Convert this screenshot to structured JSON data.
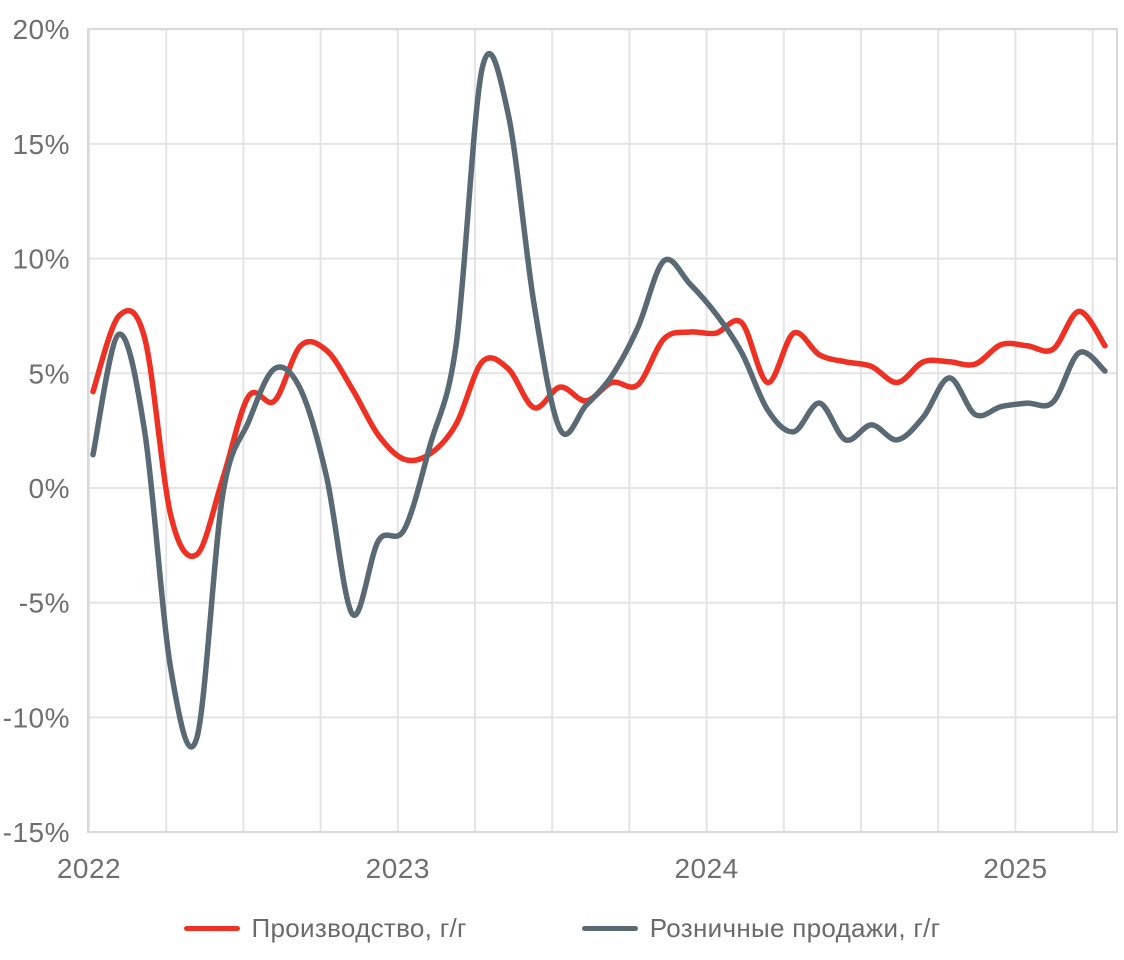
{
  "chart_data": {
    "type": "line",
    "title": "",
    "x_tick_labels": [
      "2022",
      "2023",
      "2024",
      "2025"
    ],
    "y_tick_labels": [
      "20%",
      "15%",
      "10%",
      "5%",
      "0%",
      "-5%",
      "-10%",
      "-15%"
    ],
    "y_ticks": [
      20,
      15,
      10,
      5,
      0,
      -5,
      -10,
      -15
    ],
    "ylim": [
      -15,
      20
    ],
    "grid": true,
    "legend_position": "bottom",
    "x_unit": "month",
    "months": [
      "2022-01",
      "2022-02",
      "2022-03",
      "2022-04",
      "2022-05",
      "2022-06",
      "2022-07",
      "2022-08",
      "2022-09",
      "2022-10",
      "2022-11",
      "2022-12",
      "2023-01",
      "2023-02",
      "2023-03",
      "2023-04",
      "2023-05",
      "2023-06",
      "2023-07",
      "2023-08",
      "2023-09",
      "2023-10",
      "2023-11",
      "2023-12",
      "2024-01",
      "2024-02",
      "2024-03",
      "2024-04",
      "2024-05",
      "2024-06",
      "2024-07",
      "2024-08",
      "2024-09",
      "2024-10",
      "2024-11",
      "2024-12",
      "2025-01",
      "2025-02",
      "2025-03",
      "2025-04"
    ],
    "series": [
      {
        "name": "Производство, г/г",
        "color": "#ef3124",
        "values": [
          4.2,
          7.5,
          6.5,
          -1.2,
          -2.9,
          0.4,
          4.0,
          3.8,
          6.2,
          6.0,
          4.3,
          2.3,
          1.25,
          1.5,
          2.8,
          5.5,
          5.2,
          3.5,
          4.4,
          3.8,
          4.6,
          4.5,
          6.5,
          6.8,
          6.75,
          7.2,
          4.6,
          6.75,
          5.8,
          5.5,
          5.3,
          4.6,
          5.5,
          5.5,
          5.4,
          6.25,
          6.2,
          6.05,
          7.7,
          6.2
        ]
      },
      {
        "name": "Розничные продажи, г/г",
        "color": "#5a6a75",
        "values": [
          1.45,
          6.7,
          2.4,
          -7.9,
          -10.9,
          -0.3,
          2.9,
          5.2,
          4.3,
          0.5,
          -5.5,
          -2.3,
          -1.8,
          1.9,
          6.3,
          18.3,
          16.3,
          8.0,
          2.55,
          3.6,
          4.9,
          7.0,
          9.9,
          8.9,
          7.6,
          5.9,
          3.4,
          2.45,
          3.7,
          2.1,
          2.75,
          2.1,
          3.1,
          4.8,
          3.2,
          3.55,
          3.7,
          3.75,
          5.9,
          5.1
        ]
      }
    ],
    "colors": {
      "grid": "#e4e4e4",
      "border": "#d9d9d9",
      "tick_text": "#6f6f6f",
      "background": "#ffffff"
    }
  }
}
